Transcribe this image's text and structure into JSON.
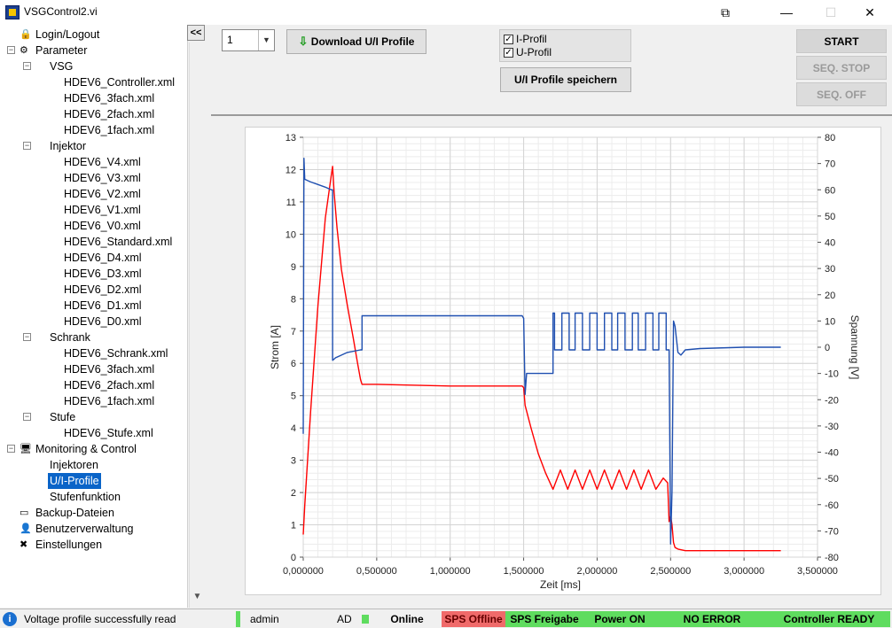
{
  "window": {
    "title": "VSGControl2.vi"
  },
  "sidebar": {
    "collapse_label": "<<",
    "items": [
      {
        "label": "Login/Logout",
        "level": 0,
        "icon": "lock-icon"
      },
      {
        "label": "Parameter",
        "level": 0,
        "icon": "sliders-icon",
        "expander": "−"
      },
      {
        "label": "VSG",
        "level": 1,
        "expander": "−"
      },
      {
        "label": "HDEV6_Controller.xml",
        "level": 2
      },
      {
        "label": "HDEV6_3fach.xml",
        "level": 2
      },
      {
        "label": "HDEV6_2fach.xml",
        "level": 2
      },
      {
        "label": "HDEV6_1fach.xml",
        "level": 2
      },
      {
        "label": "Injektor",
        "level": 1,
        "expander": "−"
      },
      {
        "label": "HDEV6_V4.xml",
        "level": 2
      },
      {
        "label": "HDEV6_V3.xml",
        "level": 2
      },
      {
        "label": "HDEV6_V2.xml",
        "level": 2
      },
      {
        "label": "HDEV6_V1.xml",
        "level": 2
      },
      {
        "label": "HDEV6_V0.xml",
        "level": 2
      },
      {
        "label": "HDEV6_Standard.xml",
        "level": 2
      },
      {
        "label": "HDEV6_D4.xml",
        "level": 2
      },
      {
        "label": "HDEV6_D3.xml",
        "level": 2
      },
      {
        "label": "HDEV6_D2.xml",
        "level": 2
      },
      {
        "label": "HDEV6_D1.xml",
        "level": 2
      },
      {
        "label": "HDEV6_D0.xml",
        "level": 2
      },
      {
        "label": "Schrank",
        "level": 1,
        "expander": "−"
      },
      {
        "label": "HDEV6_Schrank.xml",
        "level": 2
      },
      {
        "label": "HDEV6_3fach.xml",
        "level": 2
      },
      {
        "label": "HDEV6_2fach.xml",
        "level": 2
      },
      {
        "label": "HDEV6_1fach.xml",
        "level": 2
      },
      {
        "label": "Stufe",
        "level": 1,
        "expander": "−"
      },
      {
        "label": "HDEV6_Stufe.xml",
        "level": 2
      },
      {
        "label": "Monitoring & Control",
        "level": 0,
        "icon": "monitor-icon",
        "expander": "−"
      },
      {
        "label": "Injektoren",
        "level": 1
      },
      {
        "label": "U/I-Profile",
        "level": 1,
        "selected": true
      },
      {
        "label": "Stufenfunktion",
        "level": 1
      },
      {
        "label": "Backup-Dateien",
        "level": 0,
        "icon": "backup-icon"
      },
      {
        "label": "Benutzerverwaltung",
        "level": 0,
        "icon": "user-icon"
      },
      {
        "label": "Einstellungen",
        "level": 0,
        "icon": "tools-icon"
      }
    ]
  },
  "toolbar": {
    "profile_select_value": "1",
    "download_label": "Download U/I Profile",
    "i_profile_label": "I-Profil",
    "u_profile_label": "U-Profil",
    "i_profile_checked": true,
    "u_profile_checked": true,
    "save_label": "U/I Profile speichern",
    "start_label": "START",
    "seq_stop_label": "SEQ. STOP",
    "seq_off_label": "SEQ. OFF"
  },
  "chart_data": {
    "type": "line",
    "xlabel": "Zeit [ms]",
    "ylabel": "Strom [A]",
    "y2label": "Spannung [V]",
    "xlim": [
      0,
      3.5
    ],
    "ylim": [
      0,
      13
    ],
    "y2lim": [
      -80,
      80
    ],
    "xticks": [
      "0,000000",
      "0,500000",
      "1,000000",
      "1,500000",
      "2,000000",
      "2,500000",
      "3,000000",
      "3,500000"
    ],
    "yticks": [
      "0",
      "1",
      "2",
      "3",
      "4",
      "5",
      "6",
      "7",
      "8",
      "9",
      "10",
      "11",
      "12",
      "13"
    ],
    "y2ticks": [
      "-80",
      "-70",
      "-60",
      "-50",
      "-40",
      "-30",
      "-20",
      "-10",
      "0",
      "10",
      "20",
      "30",
      "40",
      "50",
      "60",
      "70",
      "80"
    ],
    "grid": true,
    "colors": {
      "current": "#ff0000",
      "voltage": "#1f4fb0"
    },
    "series": [
      {
        "axis": "left",
        "color": "#ff0000",
        "x": [
          0,
          0.01,
          0.05,
          0.1,
          0.15,
          0.19,
          0.2,
          0.21,
          0.23,
          0.26,
          0.3,
          0.34,
          0.37,
          0.39,
          0.4,
          0.5,
          1.0,
          1.49,
          1.5,
          1.51,
          1.55,
          1.6,
          1.65,
          1.7,
          1.75,
          1.8,
          1.85,
          1.9,
          1.95,
          2.0,
          2.05,
          2.1,
          2.15,
          2.2,
          2.25,
          2.3,
          2.35,
          2.4,
          2.45,
          2.48,
          2.49,
          2.5,
          2.51,
          2.52,
          2.53,
          2.55,
          2.6,
          3.0,
          3.25
        ],
        "y": [
          0.7,
          1.6,
          4.5,
          7.8,
          10.5,
          11.8,
          12.1,
          11.3,
          10.2,
          8.9,
          7.8,
          6.8,
          6.0,
          5.5,
          5.35,
          5.35,
          5.3,
          5.3,
          5.25,
          4.7,
          4.0,
          3.2,
          2.6,
          2.1,
          2.7,
          2.1,
          2.7,
          2.1,
          2.7,
          2.1,
          2.7,
          2.1,
          2.7,
          2.1,
          2.7,
          2.1,
          2.7,
          2.1,
          2.45,
          2.3,
          1.1,
          1.3,
          1.0,
          0.45,
          0.3,
          0.25,
          0.2,
          0.2,
          0.2
        ]
      },
      {
        "axis": "right",
        "color": "#1f4fb0",
        "x": [
          0,
          0.005,
          0.01,
          0.05,
          0.1,
          0.15,
          0.19,
          0.2,
          0.2,
          0.22,
          0.3,
          0.39,
          0.4,
          0.4,
          0.6,
          1.0,
          1.49,
          1.5,
          1.51,
          1.52,
          1.52,
          1.7,
          1.7,
          1.71,
          1.71,
          1.76,
          1.76,
          1.81,
          1.81,
          1.85,
          1.85,
          1.9,
          1.9,
          1.95,
          1.95,
          2.0,
          2.0,
          2.05,
          2.05,
          2.1,
          2.1,
          2.14,
          2.14,
          2.19,
          2.19,
          2.24,
          2.24,
          2.28,
          2.28,
          2.33,
          2.33,
          2.38,
          2.38,
          2.42,
          2.42,
          2.47,
          2.47,
          2.49,
          2.5,
          2.51,
          2.52,
          2.53,
          2.55,
          2.57,
          2.6,
          2.7,
          3.0,
          3.25
        ],
        "y": [
          -33,
          72,
          64,
          63,
          62,
          61,
          60,
          60,
          -5,
          -4,
          -2,
          -1,
          -1,
          12,
          12,
          12,
          12,
          11,
          -18,
          -10,
          -10,
          -10,
          13,
          13,
          -1,
          -1,
          13,
          13,
          -1,
          -1,
          13,
          13,
          -1,
          -1,
          13,
          13,
          -1,
          -1,
          13,
          13,
          -1,
          -1,
          13,
          13,
          -1,
          -1,
          13,
          13,
          -1,
          -1,
          13,
          13,
          -1,
          -1,
          13,
          13,
          -1,
          -1,
          -75,
          -55,
          10,
          8,
          -2,
          -3,
          -1,
          -0.5,
          0,
          0
        ]
      }
    ]
  },
  "status": {
    "message": "Voltage profile successfully read",
    "user": "admin",
    "user_role": "AD",
    "online": "Online",
    "sps": "SPS Offline",
    "sps_freigabe": "SPS Freigabe",
    "power": "Power ON",
    "error": "NO ERROR",
    "controller": "Controller READY"
  }
}
